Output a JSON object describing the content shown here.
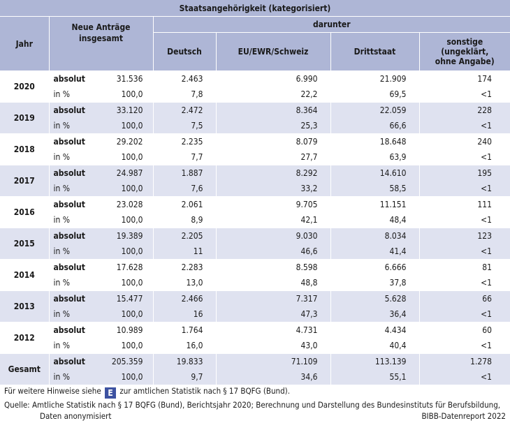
{
  "header": {
    "title": "Staatsangehörigkeit (kategorisiert)",
    "darunter": "darunter",
    "col_jahr": "Jahr",
    "col_neu_line1": "Neue Anträge",
    "col_neu_line2": "insgesamt",
    "col_deutsch": "Deutsch",
    "col_eu": "EU/EWR/Schweiz",
    "col_dritt": "Drittstaat",
    "col_sonst_line1": "sonstige",
    "col_sonst_line2": "(ungeklärt,",
    "col_sonst_line3": "ohne Angabe)"
  },
  "label_abs": "absolut",
  "label_pct": "in %",
  "rows": [
    {
      "year": "2020",
      "abs": [
        "31.536",
        "2.463",
        "6.990",
        "21.909",
        "174"
      ],
      "pct": [
        "100,0",
        "7,8",
        "22,2",
        "69,5",
        "<1"
      ]
    },
    {
      "year": "2019",
      "abs": [
        "33.120",
        "2.472",
        "8.364",
        "22.059",
        "228"
      ],
      "pct": [
        "100,0",
        "7,5",
        "25,3",
        "66,6",
        "<1"
      ]
    },
    {
      "year": "2018",
      "abs": [
        "29.202",
        "2.235",
        "8.079",
        "18.648",
        "240"
      ],
      "pct": [
        "100,0",
        "7,7",
        "27,7",
        "63,9",
        "<1"
      ]
    },
    {
      "year": "2017",
      "abs": [
        "24.987",
        "1.887",
        "8.292",
        "14.610",
        "195"
      ],
      "pct": [
        "100,0",
        "7,6",
        "33,2",
        "58,5",
        "<1"
      ]
    },
    {
      "year": "2016",
      "abs": [
        "23.028",
        "2.061",
        "9.705",
        "11.151",
        "111"
      ],
      "pct": [
        "100,0",
        "8,9",
        "42,1",
        "48,4",
        "<1"
      ]
    },
    {
      "year": "2015",
      "abs": [
        "19.389",
        "2.205",
        "9.030",
        "8.034",
        "123"
      ],
      "pct": [
        "100,0",
        "11",
        "46,6",
        "41,4",
        "<1"
      ]
    },
    {
      "year": "2014",
      "abs": [
        "17.628",
        "2.283",
        "8.598",
        "6.666",
        "81"
      ],
      "pct": [
        "100,0",
        "13,0",
        "48,8",
        "37,8",
        "<1"
      ]
    },
    {
      "year": "2013",
      "abs": [
        "15.477",
        "2.466",
        "7.317",
        "5.628",
        "66"
      ],
      "pct": [
        "100,0",
        "16",
        "47,3",
        "36,4",
        "<1"
      ]
    },
    {
      "year": "2012",
      "abs": [
        "10.989",
        "1.764",
        "4.731",
        "4.434",
        "60"
      ],
      "pct": [
        "100,0",
        "16,0",
        "43,0",
        "40,4",
        "<1"
      ]
    },
    {
      "year": "Gesamt",
      "abs": [
        "205.359",
        "19.833",
        "71.109",
        "113.139",
        "1.278"
      ],
      "pct": [
        "100,0",
        "9,7",
        "34,6",
        "55,1",
        "<1"
      ]
    }
  ],
  "footer": {
    "hint_before": "Für weitere Hinweise siehe",
    "hint_badge": "E",
    "hint_after": "zur amtlichen Statistik nach § 17 BQFG (Bund).",
    "source_line1": "Quelle: Amtliche Statistik nach § 17 BQFG (Bund), Berichtsjahr 2020; Berechnung und Darstellung des Bundesinstituts für Berufsbildung,",
    "source_line2": "Daten anonymisiert",
    "credit": "BIBB-Datenreport 2022"
  }
}
